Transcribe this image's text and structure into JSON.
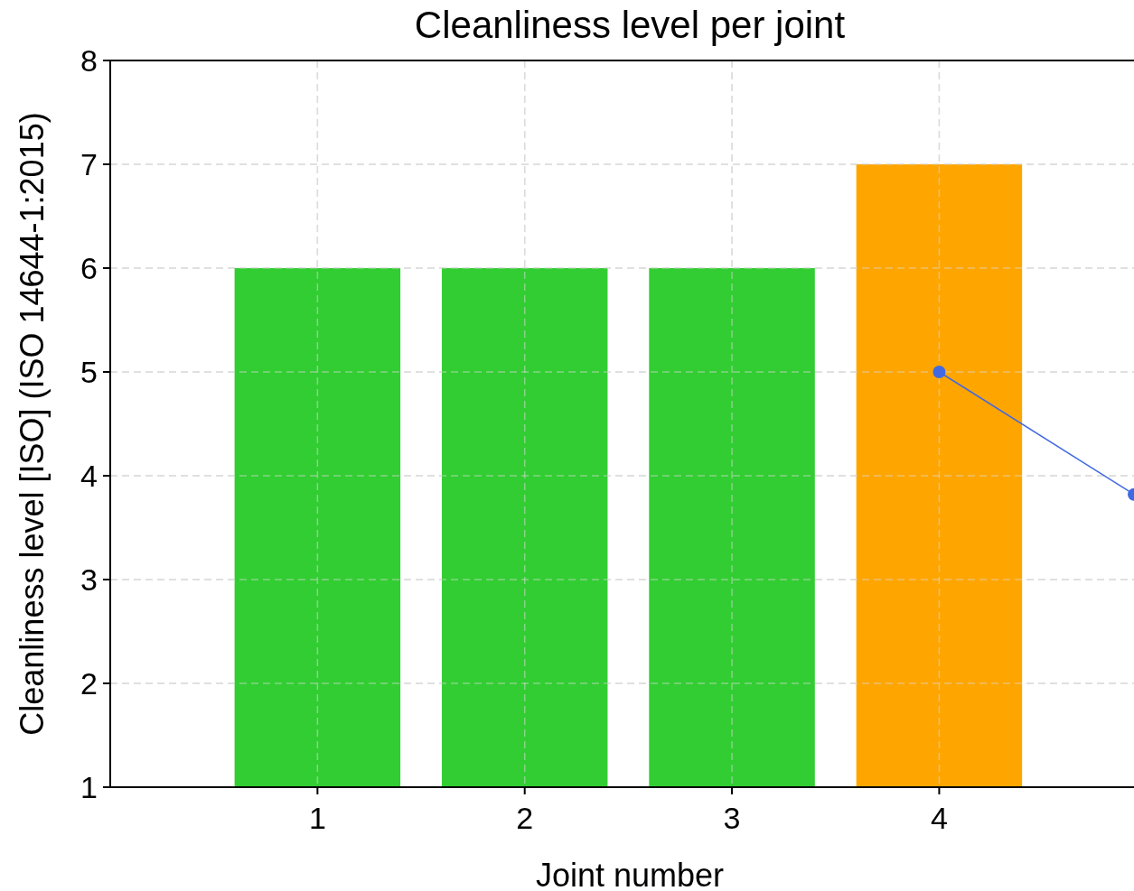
{
  "chart_data": {
    "type": "bar",
    "title": "Cleanliness level per joint",
    "xlabel": "Joint number",
    "ylabel": "Cleanliness level [ISO] (ISO 14644-1:2015)",
    "x": [
      1,
      2,
      3,
      4
    ],
    "xlim": [
      0,
      4.94
    ],
    "xticks": [
      1,
      2,
      3,
      4
    ],
    "ylim": [
      1,
      8
    ],
    "yticks": [
      1,
      2,
      3,
      4,
      5,
      6,
      7,
      8
    ],
    "grid": true,
    "series": [
      {
        "colors": [
          "#32cd32",
          "#32cd32",
          "#32cd32",
          "#ffa500"
        ],
        "values": [
          6,
          6,
          6,
          7
        ]
      },
      {
        "type": "line",
        "x": [
          4,
          4.94
        ],
        "values": [
          5,
          3.82
        ],
        "color": "#4169e1",
        "marker": "circle"
      }
    ]
  }
}
